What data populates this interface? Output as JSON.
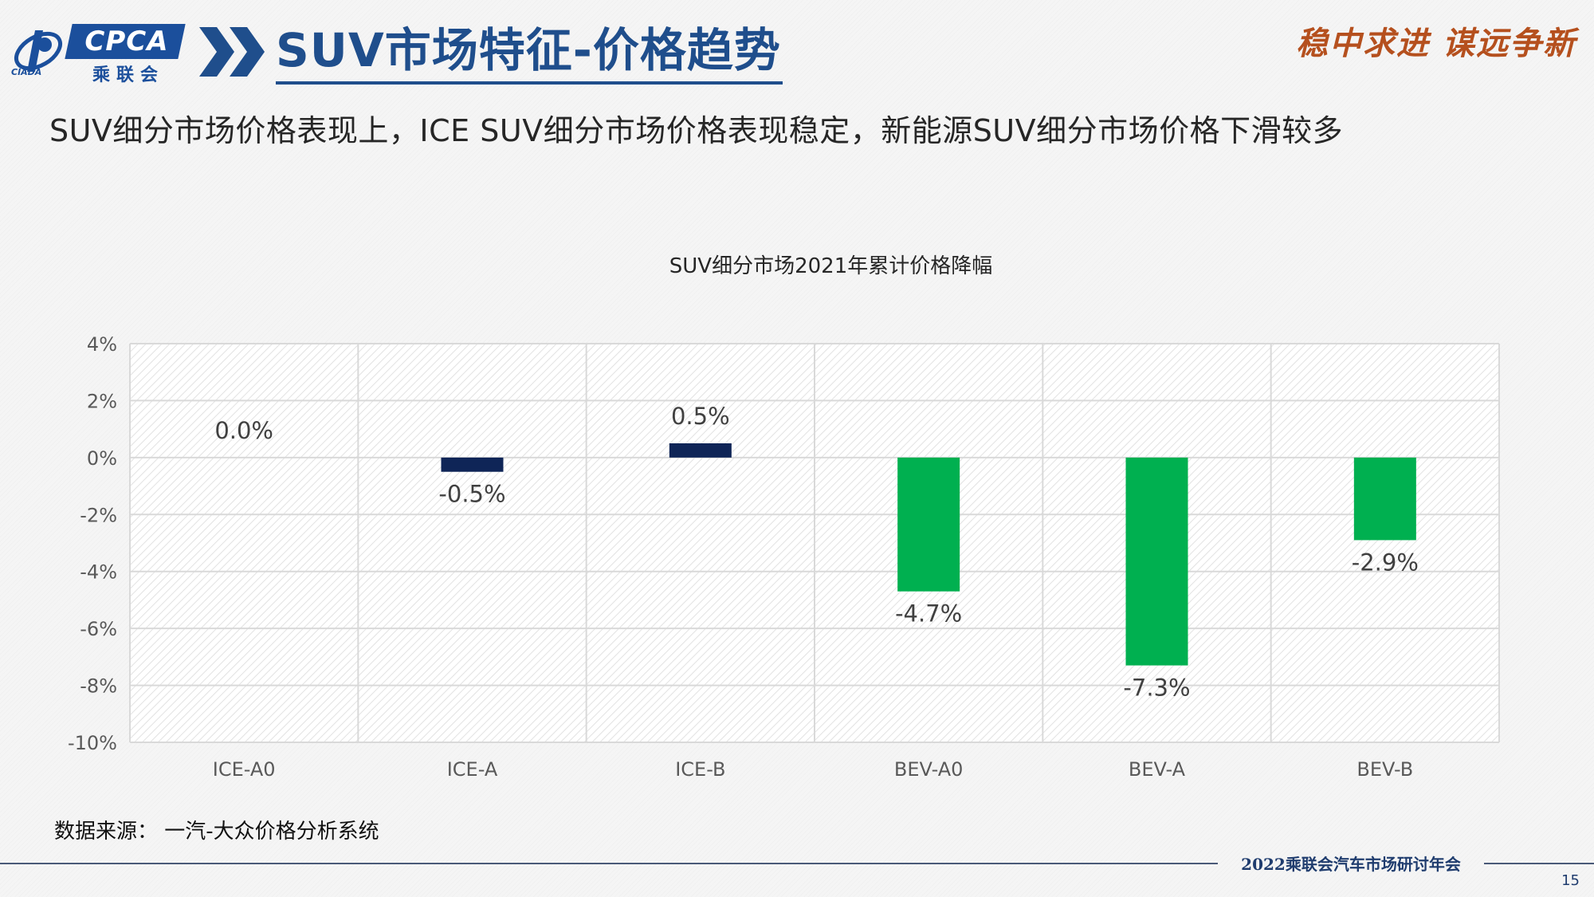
{
  "header": {
    "logo_text": "CPCA",
    "logo_cn": "乘联会",
    "logo_sub": "CIADA",
    "title": "SUV市场特征-价格趋势",
    "slogan": "稳中求进 谋远争新"
  },
  "subtitle": "SUV细分市场价格表现上，ICE SUV细分市场价格表现稳定，新能源SUV细分市场价格下滑较多",
  "chart_data": {
    "type": "bar",
    "title": "SUV细分市场2021年累计价格降幅",
    "categories": [
      "ICE-A0",
      "ICE-A",
      "ICE-B",
      "BEV-A0",
      "BEV-A",
      "BEV-B"
    ],
    "values": [
      0.0,
      -0.5,
      0.5,
      -4.7,
      -7.3,
      -2.9
    ],
    "data_labels": [
      "0.0%",
      "-0.5%",
      "0.5%",
      "-4.7%",
      "-7.3%",
      "-2.9%"
    ],
    "bar_colors": [
      "#0f2557",
      "#0f2557",
      "#0f2557",
      "#00b050",
      "#00b050",
      "#00b050"
    ],
    "ylim": [
      -10,
      4
    ],
    "yticks": [
      4,
      2,
      0,
      -2,
      -4,
      -6,
      -8,
      -10
    ],
    "ytick_labels": [
      "4%",
      "2%",
      "0%",
      "-2%",
      "-4%",
      "-6%",
      "-8%",
      "-10%"
    ],
    "xlabel": "",
    "ylabel": "",
    "grid": true,
    "legend": "none"
  },
  "source": "数据来源： 一汽-大众价格分析系统",
  "footer": {
    "text": "2022乘联会汽车市场研讨年会",
    "page_number": "15"
  },
  "colors": {
    "title_blue": "#1f4e8c",
    "slogan_orange": "#b5501e",
    "ice_bar": "#0f2557",
    "bev_bar": "#00b050"
  }
}
